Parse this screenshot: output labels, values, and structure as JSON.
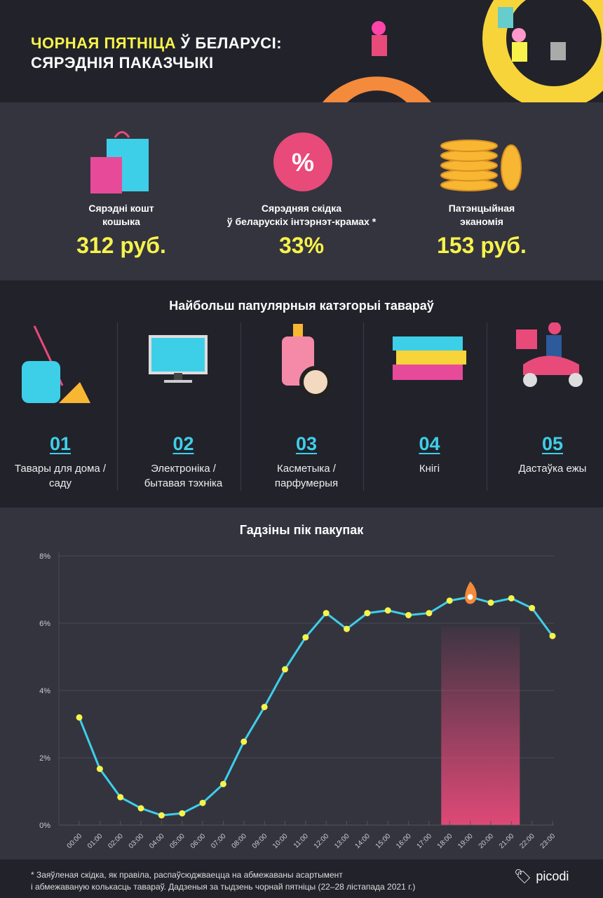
{
  "header": {
    "title_highlight": "ЧОРНАЯ ПЯТНІЦА",
    "title_rest": " Ў БЕЛАРУСІ:",
    "title_line2": "СЯРЭДНІЯ ПАКАЗЧЫКІ"
  },
  "stats": [
    {
      "label1": "Сярэдні кошт",
      "label2": "кошыка",
      "value": "312 руб.",
      "icon": "shopping-bags-icon"
    },
    {
      "label1": "Сярэдняя скідка",
      "label2": "ў беларускіх інтэрнэт-крамах *",
      "value": "33%",
      "icon": "percent-badge-icon"
    },
    {
      "label1": "Патэнцыйная",
      "label2": "эканомія",
      "value": "153 руб.",
      "icon": "coins-icon"
    }
  ],
  "categories": {
    "title": "Найбольш папулярныя катэгорыі тавараў",
    "items": [
      {
        "num": "01",
        "line1": "Тавары для дома /",
        "line2": "саду",
        "icon": "watering-can-broom-icon"
      },
      {
        "num": "02",
        "line1": "Электроніка /",
        "line2": "бытавая тэхніка",
        "icon": "monitor-icon"
      },
      {
        "num": "03",
        "line1": "Касметыка /",
        "line2": "парфумерыя",
        "icon": "perfume-icon"
      },
      {
        "num": "04",
        "line1": "Кнігі",
        "line2": "",
        "icon": "books-icon"
      },
      {
        "num": "05",
        "line1": "Дастаўка ежы",
        "line2": "",
        "icon": "delivery-scooter-icon"
      }
    ]
  },
  "chart_data": {
    "type": "line",
    "title": "Гадзіны пік пакупак",
    "categories": [
      "00:00",
      "01:00",
      "02:00",
      "03:00",
      "04:00",
      "05:00",
      "06:00",
      "07:00",
      "08:00",
      "09:00",
      "10:00",
      "11:00",
      "12:00",
      "13:00",
      "14:00",
      "15:00",
      "16:00",
      "17:00",
      "18:00",
      "19:00",
      "20:00",
      "21:00",
      "22:00",
      "23:00"
    ],
    "values": [
      3.2,
      1.67,
      0.83,
      0.5,
      0.29,
      0.35,
      0.66,
      1.22,
      2.48,
      3.51,
      4.63,
      5.58,
      6.3,
      5.83,
      6.3,
      6.38,
      6.24,
      6.3,
      6.67,
      6.78,
      6.61,
      6.74,
      6.45,
      5.62
    ],
    "yticks": [
      "0%",
      "2%",
      "4%",
      "6%",
      "8%"
    ],
    "ylim": [
      0,
      8
    ],
    "grid": true,
    "highlight_range": [
      "18:00",
      "21:00"
    ],
    "peak": "19:00",
    "line_color": "#3ecfe8",
    "point_color": "#f7f34a",
    "highlight_color": "#e84a7a"
  },
  "footer": {
    "note1": "* Заяўленая скідка, як правіла, распаўсюджваецца на абмежаваны асартымент",
    "note2": "і абмежаваную колькасць тавараў. Дадзеныя за тыдзень чорнай пятніцы (22–28 лістапада 2021 г.)",
    "logo": "picodi"
  }
}
